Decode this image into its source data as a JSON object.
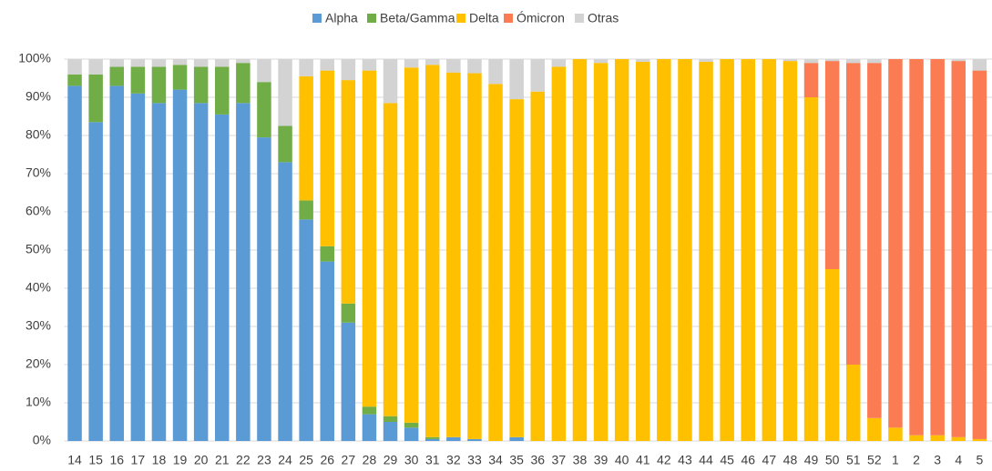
{
  "chart_data": {
    "type": "bar",
    "stacked": true,
    "categories": [
      "14",
      "15",
      "16",
      "17",
      "18",
      "19",
      "20",
      "21",
      "22",
      "23",
      "24",
      "25",
      "26",
      "27",
      "28",
      "29",
      "30",
      "31",
      "32",
      "33",
      "34",
      "35",
      "36",
      "37",
      "38",
      "39",
      "40",
      "41",
      "42",
      "43",
      "44",
      "45",
      "46",
      "47",
      "48",
      "49",
      "50",
      "51",
      "52",
      "1",
      "2",
      "3",
      "4",
      "5"
    ],
    "series": [
      {
        "name": "Alpha",
        "color": "#5b9bd5",
        "values": [
          93,
          83.5,
          93,
          91,
          88.5,
          92,
          88.5,
          85.5,
          88.5,
          79.5,
          73,
          58,
          47,
          31,
          7,
          5,
          3.5,
          0.5,
          1,
          0.5,
          0,
          1,
          0,
          0,
          0,
          0,
          0,
          0,
          0,
          0,
          0,
          0,
          0,
          0,
          0,
          0,
          0,
          0,
          0,
          0,
          0,
          0,
          0,
          0
        ]
      },
      {
        "name": "Beta/Gamma",
        "color": "#70ad47",
        "values": [
          3,
          12.5,
          5,
          7,
          9.5,
          6.5,
          9.5,
          12.5,
          10.5,
          14.5,
          9.5,
          5,
          4,
          5,
          2,
          1.5,
          1.3,
          0.5,
          0,
          0,
          0,
          0,
          0,
          0,
          0,
          0,
          0,
          0,
          0,
          0,
          0,
          0,
          0,
          0,
          0,
          0,
          0,
          0,
          0,
          0,
          0,
          0,
          0,
          0
        ]
      },
      {
        "name": "Delta",
        "color": "#ffc000",
        "values": [
          0,
          0,
          0,
          0,
          0,
          0,
          0,
          0,
          0,
          0,
          0,
          32.5,
          46,
          58.5,
          88,
          82,
          93,
          97.5,
          95.5,
          95.8,
          93.5,
          88.5,
          91.5,
          98,
          100,
          99,
          100,
          99.3,
          100,
          100,
          99.3,
          100,
          100,
          100,
          99.5,
          90,
          45,
          20,
          6,
          3.5,
          1.5,
          1.5,
          1,
          0.5
        ]
      },
      {
        "name": "Ómicron",
        "color": "#fb7b52",
        "values": [
          0,
          0,
          0,
          0,
          0,
          0,
          0,
          0,
          0,
          0,
          0,
          0,
          0,
          0,
          0,
          0,
          0,
          0,
          0,
          0,
          0,
          0,
          0,
          0,
          0,
          0,
          0,
          0,
          0,
          0,
          0,
          0,
          0,
          0,
          0,
          9,
          54.5,
          79,
          93,
          96.5,
          98.5,
          98.5,
          98.5,
          96.5
        ]
      },
      {
        "name": "Otras",
        "color": "#d3d3d3",
        "values": [
          4,
          4,
          2,
          2,
          2,
          1.5,
          2,
          2,
          1,
          6,
          17.5,
          4.5,
          3,
          5.5,
          3,
          11.5,
          2.2,
          1.5,
          3.5,
          3.7,
          6.5,
          10.5,
          8.5,
          2,
          0,
          1,
          0,
          0.7,
          0,
          0,
          0.7,
          0,
          0,
          0,
          0.5,
          1,
          0.5,
          1,
          1,
          0,
          0,
          0,
          0.5,
          3
        ]
      }
    ],
    "ylim": [
      0,
      100
    ],
    "yticks": [
      {
        "value": 0,
        "label": "0%"
      },
      {
        "value": 10,
        "label": "10%"
      },
      {
        "value": 20,
        "label": "20%"
      },
      {
        "value": 30,
        "label": "30%"
      },
      {
        "value": 40,
        "label": "40%"
      },
      {
        "value": 50,
        "label": "50%"
      },
      {
        "value": 60,
        "label": "60%"
      },
      {
        "value": 70,
        "label": "70%"
      },
      {
        "value": 80,
        "label": "80%"
      },
      {
        "value": 90,
        "label": "90%"
      },
      {
        "value": 100,
        "label": "100%"
      }
    ],
    "grid": true,
    "legend": "top"
  }
}
